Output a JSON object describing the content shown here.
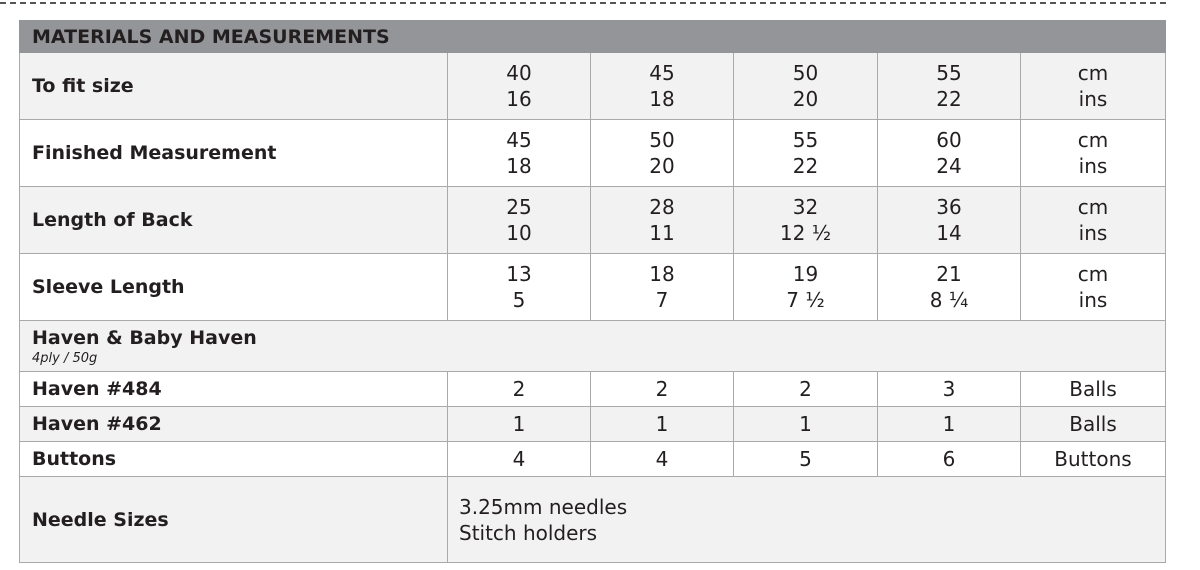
{
  "title": "MATERIALS AND MEASUREMENTS",
  "measurements": [
    {
      "label": "To fit size",
      "cm": [
        "40",
        "45",
        "50",
        "55"
      ],
      "ins": [
        "16",
        "18",
        "20",
        "22"
      ],
      "unit_cm": "cm",
      "unit_ins": "ins"
    },
    {
      "label": "Finished Measurement",
      "cm": [
        "45",
        "50",
        "55",
        "60"
      ],
      "ins": [
        "18",
        "20",
        "22",
        "24"
      ],
      "unit_cm": "cm",
      "unit_ins": "ins"
    },
    {
      "label": "Length of Back",
      "cm": [
        "25",
        "28",
        "32",
        "36"
      ],
      "ins": [
        "10",
        "11",
        "12 ½",
        "14"
      ],
      "unit_cm": "cm",
      "unit_ins": "ins"
    },
    {
      "label": "Sleeve Length",
      "cm": [
        "13",
        "18",
        "19",
        "21"
      ],
      "ins": [
        "5",
        "7",
        "7 ½",
        "8 ¼"
      ],
      "unit_cm": "cm",
      "unit_ins": "ins"
    }
  ],
  "yarn_group": {
    "label": "Haven & Baby Haven",
    "sub": "4ply / 50g"
  },
  "materials": [
    {
      "label": "Haven #484",
      "values": [
        "2",
        "2",
        "2",
        "3"
      ],
      "unit": "Balls"
    },
    {
      "label": "Haven #462",
      "values": [
        "1",
        "1",
        "1",
        "1"
      ],
      "unit": "Balls"
    },
    {
      "label": "Buttons",
      "values": [
        "4",
        "4",
        "5",
        "6"
      ],
      "unit": "Buttons"
    }
  ],
  "needles": {
    "label": "Needle Sizes",
    "lines": [
      "3.25mm needles",
      "Stitch holders"
    ]
  },
  "colors": {
    "header": "#939598",
    "shaded": "#f2f2f2",
    "border": "#a7a9ac"
  }
}
